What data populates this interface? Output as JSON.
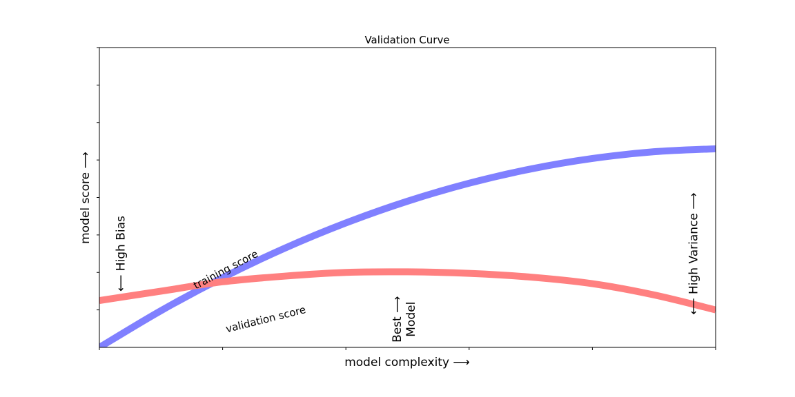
{
  "chart_data": {
    "type": "line",
    "title": "Validation Curve",
    "xlabel": "model complexity ⟶",
    "ylabel": "model score ⟶",
    "xlim": [
      0,
      1
    ],
    "ylim": [
      -0.3,
      1.3
    ],
    "grid": false,
    "legend": "none",
    "xticks": [
      0,
      0.2,
      0.4,
      0.6,
      0.8,
      1.0
    ],
    "yticks": [
      -0.1,
      0.1,
      0.3,
      0.5,
      0.7,
      0.9,
      1.1,
      1.3
    ],
    "show_tick_labels": false,
    "series": [
      {
        "key": "training",
        "color": "#8080ff",
        "x": [
          0,
          0.1,
          0.2,
          0.3,
          0.4,
          0.5,
          0.6,
          0.7,
          0.8,
          0.9,
          1.0
        ],
        "y": [
          -0.3,
          -0.104,
          0.072,
          0.228,
          0.364,
          0.48,
          0.576,
          0.652,
          0.708,
          0.744,
          0.76
        ]
      },
      {
        "key": "validation",
        "color": "#ff8080",
        "x": [
          0,
          0.1,
          0.2,
          0.3,
          0.4,
          0.5,
          0.6,
          0.7,
          0.8,
          0.9,
          1.0
        ],
        "y": [
          -0.05,
          0.0,
          0.05,
          0.08,
          0.1,
          0.103,
          0.095,
          0.075,
          0.04,
          -0.02,
          -0.1
        ]
      }
    ],
    "annotations": [
      {
        "key": "training_label",
        "text": "training score",
        "x": 0.205,
        "y": 0.115,
        "rotation": -28,
        "color": "#0000cc",
        "size": 15,
        "style": "italic"
      },
      {
        "key": "validation_label",
        "text": "validation score",
        "x": 0.27,
        "y": -0.15,
        "rotation": -14,
        "color": "#ee0000",
        "size": 15,
        "style": "italic"
      },
      {
        "key": "best_model",
        "text": "Best ⟶",
        "text2": "Model",
        "x": 0.495,
        "y": -0.15,
        "rotation": -90,
        "color": "#000000",
        "size": 17
      },
      {
        "key": "high_bias",
        "text": "⟵ High Bias",
        "x": 0.035,
        "y": 0.2,
        "rotation": -90,
        "color": "#000000",
        "size": 17
      },
      {
        "key": "high_variance",
        "text": "⟵ High Variance ⟶",
        "x": 0.965,
        "y": 0.2,
        "rotation": -90,
        "color": "#000000",
        "size": 17
      }
    ]
  }
}
